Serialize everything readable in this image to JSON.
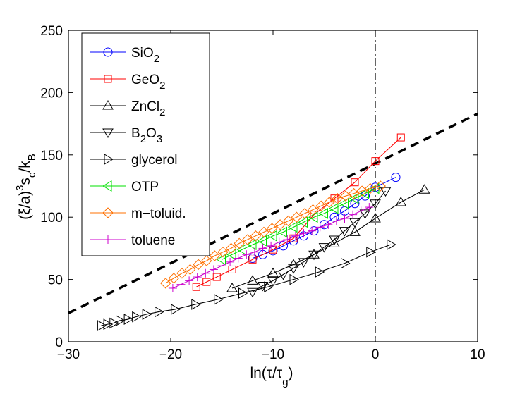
{
  "chart_data": {
    "type": "line",
    "title": "",
    "xlim": [
      -30,
      10
    ],
    "ylim": [
      0,
      250
    ],
    "xticks": [
      "-30",
      "-20",
      "-10",
      "0",
      "10"
    ],
    "yticks": [
      "0",
      "50",
      "100",
      "150",
      "200",
      "250"
    ],
    "grid": false,
    "legend_position": "top-left",
    "xlabel": {
      "main": "ln(τ/τ",
      "sub": "g",
      "close": ")"
    },
    "ylabel": {
      "a": "(ξ/a)",
      "exp": "3",
      "b": "s",
      "sub1": "c",
      "c": "/k",
      "sub2": "B"
    },
    "reference_lines": [
      {
        "kind": "dashed",
        "color": "#000000",
        "points": [
          [
            -30,
            23
          ],
          [
            10,
            183
          ]
        ]
      },
      {
        "kind": "dash-dot-vertical",
        "color": "#000000",
        "x": 0
      }
    ],
    "series": [
      {
        "name": "SiO",
        "sub": "2",
        "color": "#0000ff",
        "marker": "circle",
        "x": [
          -12,
          -11,
          -10,
          -9,
          -8,
          -7,
          -6,
          -5,
          -4,
          -3,
          -2,
          -1,
          0,
          2
        ],
        "y": [
          67,
          70,
          73,
          77,
          81,
          85,
          89,
          94,
          100,
          105,
          111,
          117,
          124,
          132
        ]
      },
      {
        "name": "GeO",
        "sub": "2",
        "color": "#ff0000",
        "marker": "square",
        "x": [
          -17.5,
          -16.5,
          -15.5,
          -14,
          -12,
          -10,
          -8,
          -6,
          -4,
          -2,
          0,
          2.5
        ],
        "y": [
          44,
          48,
          52,
          58,
          66,
          74,
          83,
          102,
          115,
          128,
          145,
          164
        ]
      },
      {
        "name": "ZnCl",
        "sub": "2",
        "color": "#000000",
        "marker": "triangle-up",
        "x": [
          -14,
          -12,
          -10,
          -8,
          -6,
          -4,
          -2,
          0,
          2.5,
          4.8
        ],
        "y": [
          43,
          49,
          55,
          62,
          70,
          79,
          88,
          99,
          112,
          122
        ]
      },
      {
        "name": "B",
        "sub": "2",
        "tail": "O",
        "sub2": "3",
        "color": "#000000",
        "marker": "triangle-down",
        "x": [
          -12,
          -11,
          -10,
          -9,
          -8,
          -7,
          -6,
          -5,
          -4,
          -3,
          -2,
          -1,
          0,
          1
        ],
        "y": [
          40,
          45,
          49,
          54,
          59,
          64,
          70,
          76,
          82,
          89,
          96,
          103,
          111,
          121
        ]
      },
      {
        "name": "glycerol",
        "color": "#000000",
        "marker": "triangle-right",
        "x": [
          -26.8,
          -26.2,
          -25.6,
          -25,
          -24.2,
          -23.4,
          -22.4,
          -21.2,
          -19.6,
          -17.6,
          -15.4,
          -13,
          -10.5,
          -8,
          -5.5,
          -3,
          -0.5,
          1.5
        ],
        "y": [
          13,
          14,
          15,
          17,
          18,
          20,
          22,
          24,
          26,
          30,
          34,
          39,
          44,
          50,
          56,
          63,
          72,
          78
        ]
      },
      {
        "name": "OTP",
        "color": "#00e000",
        "marker": "triangle-left",
        "x": [
          -15,
          -14,
          -13,
          -12,
          -11,
          -10,
          -9,
          -8,
          -7,
          -6,
          -5,
          -4,
          -3,
          -2,
          -1,
          0
        ],
        "y": [
          66,
          70,
          74,
          78,
          81,
          85,
          88,
          92,
          96,
          100,
          103,
          107,
          111,
          115,
          119,
          123
        ]
      },
      {
        "name": "m−toluid.",
        "color": "#ff7000",
        "marker": "diamond",
        "x": [
          -20.5,
          -19.7,
          -18.9,
          -18.1,
          -17.3,
          -16.5,
          -15.7,
          -14.9,
          -14.1,
          -13.3,
          -12.5,
          -11.7,
          -10.9,
          -10.1,
          -9.3,
          -8.5,
          -7.7,
          -6.9,
          -6.1,
          -5.3,
          -4.5,
          -3.7,
          -2.9,
          -2.1,
          -1.3,
          -0.5,
          0.5
        ],
        "y": [
          47,
          51,
          55,
          58,
          62,
          65,
          69,
          72,
          75,
          79,
          82,
          85,
          88,
          91,
          94,
          97,
          100,
          103,
          106,
          109,
          112,
          115,
          117,
          119,
          121,
          123,
          125
        ]
      },
      {
        "name": "toluene",
        "color": "#cc00cc",
        "marker": "plus",
        "x": [
          -19.8,
          -19,
          -18.2,
          -17.4,
          -16.6,
          -15.8,
          -15,
          -14.2,
          -13.4,
          -12.6,
          -11.8,
          -11,
          -10.2,
          -9.4,
          -8.6,
          -7.8,
          -7,
          -6.2,
          -5.4,
          -4.6,
          -3.8,
          -3,
          -2.2,
          -1.4,
          -0.6
        ],
        "y": [
          43,
          46,
          49,
          52,
          55,
          58,
          61,
          64,
          67,
          70,
          72,
          75,
          77,
          80,
          82,
          85,
          87,
          89,
          92,
          94,
          97,
          99,
          102,
          105,
          108
        ]
      }
    ]
  }
}
